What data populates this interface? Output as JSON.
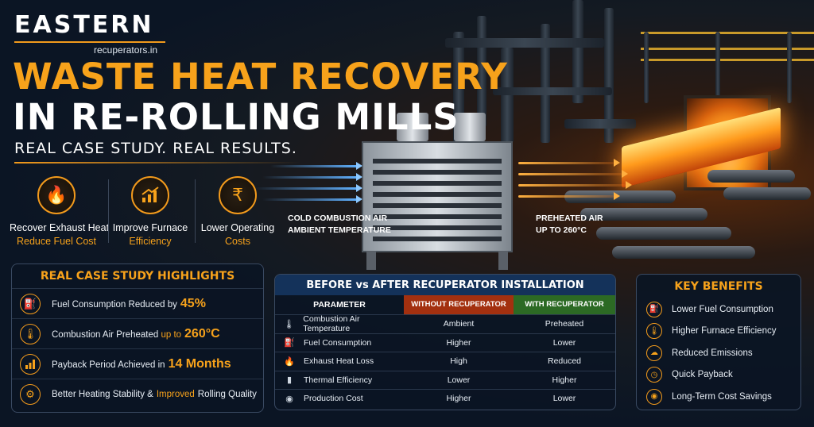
{
  "brand": {
    "name": "EASTERN",
    "domain": "recuperators.in"
  },
  "hero": {
    "title_line1": "WASTE HEAT RECOVERY",
    "title_line2": "IN RE-ROLLING MILLS",
    "subtitle": "REAL CASE STUDY. REAL RESULTS."
  },
  "features": [
    {
      "line1": "Recover Exhaust Heat",
      "line2": "Reduce Fuel Cost",
      "icon": "flame-icon"
    },
    {
      "line1": "Improve Furnace",
      "line2": "Efficiency",
      "icon": "bar-chart-icon"
    },
    {
      "line1": "Lower Operating",
      "line2": "Costs",
      "icon": "rupee-gear-icon"
    }
  ],
  "flow": {
    "cold_line1": "COLD COMBUSTION AIR",
    "cold_line2": "AMBIENT TEMPERATURE",
    "hot_line1": "PREHEATED AIR",
    "hot_line2": "UP TO 260°C"
  },
  "highlights": {
    "title": "REAL CASE STUDY HIGHLIGHTS",
    "items": [
      {
        "text": "Fuel Consumption Reduced by",
        "emphasis": "45%",
        "icon": "fuel-pump-icon"
      },
      {
        "text": "Combustion Air Preheated",
        "emphasis_prefix": "up to",
        "emphasis": "260°C",
        "icon": "thermometer-icon"
      },
      {
        "text": "Payback Period Achieved in",
        "emphasis": "14 Months",
        "icon": "bar-chart-icon"
      },
      {
        "text_before": "Better Heating Stability &",
        "emphasis": "Improved",
        "text_after": "Rolling Quality",
        "icon": "gear-icon"
      }
    ]
  },
  "comparison": {
    "title": "BEFORE vs AFTER RECUPERATOR INSTALLATION",
    "headers": [
      "PARAMETER",
      "WITHOUT RECUPERATOR",
      "WITH RECUPERATOR"
    ],
    "rows": [
      {
        "icon": "thermometer-icon",
        "parameter": "Combustion Air Temperature",
        "without": "Ambient",
        "with": "Preheated"
      },
      {
        "icon": "fuel-pump-icon",
        "parameter": "Fuel Consumption",
        "without": "Higher",
        "with": "Lower"
      },
      {
        "icon": "flame-icon",
        "parameter": "Exhaust Heat Loss",
        "without": "High",
        "with": "Reduced"
      },
      {
        "icon": "bar-chart-icon",
        "parameter": "Thermal Efficiency",
        "without": "Lower",
        "with": "Higher"
      },
      {
        "icon": "coins-icon",
        "parameter": "Production Cost",
        "without": "Higher",
        "with": "Lower"
      }
    ]
  },
  "benefits": {
    "title": "KEY BENEFITS",
    "items": [
      {
        "text": "Lower Fuel Consumption",
        "icon": "fuel-pump-icon"
      },
      {
        "text": "Higher Furnace Efficiency",
        "icon": "thermometer-icon"
      },
      {
        "text": "Reduced Emissions",
        "icon": "cloud-icon"
      },
      {
        "text": "Quick Payback",
        "icon": "gauge-icon"
      },
      {
        "text": "Long-Term Cost Savings",
        "icon": "coins-icon"
      }
    ]
  },
  "colors": {
    "accent": "#f7a21b",
    "background": "#0b1524",
    "without_header": "#a3300f",
    "with_header": "#2c6a24"
  }
}
